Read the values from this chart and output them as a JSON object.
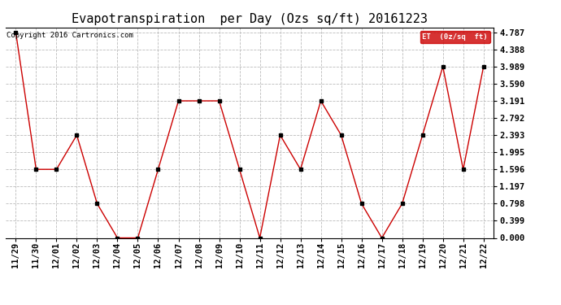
{
  "title": "Evapotranspiration  per Day (Ozs sq/ft) 20161223",
  "copyright": "Copyright 2016 Cartronics.com",
  "legend_label": "ET  (0z/sq  ft)",
  "x_labels": [
    "11/29",
    "11/30",
    "12/01",
    "12/02",
    "12/03",
    "12/04",
    "12/05",
    "12/06",
    "12/07",
    "12/08",
    "12/09",
    "12/10",
    "12/11",
    "12/12",
    "12/13",
    "12/14",
    "12/15",
    "12/16",
    "12/17",
    "12/18",
    "12/19",
    "12/20",
    "12/21",
    "12/22"
  ],
  "y_values": [
    4.787,
    1.596,
    1.596,
    2.393,
    0.798,
    0.0,
    0.0,
    1.596,
    3.191,
    3.191,
    3.191,
    1.596,
    0.0,
    2.393,
    1.596,
    3.191,
    2.393,
    0.798,
    0.0,
    0.798,
    2.393,
    3.989,
    1.596,
    3.989
  ],
  "y_ticks": [
    0.0,
    0.399,
    0.798,
    1.197,
    1.596,
    1.995,
    2.393,
    2.792,
    3.191,
    3.59,
    3.989,
    4.388,
    4.787
  ],
  "ylim": [
    0.0,
    4.9
  ],
  "line_color": "#cc0000",
  "marker_color": "#000000",
  "grid_color": "#bbbbbb",
  "background_color": "#ffffff",
  "legend_bg": "#cc0000",
  "legend_text_color": "#ffffff",
  "title_fontsize": 11,
  "tick_fontsize": 7.5,
  "copyright_fontsize": 6.5
}
